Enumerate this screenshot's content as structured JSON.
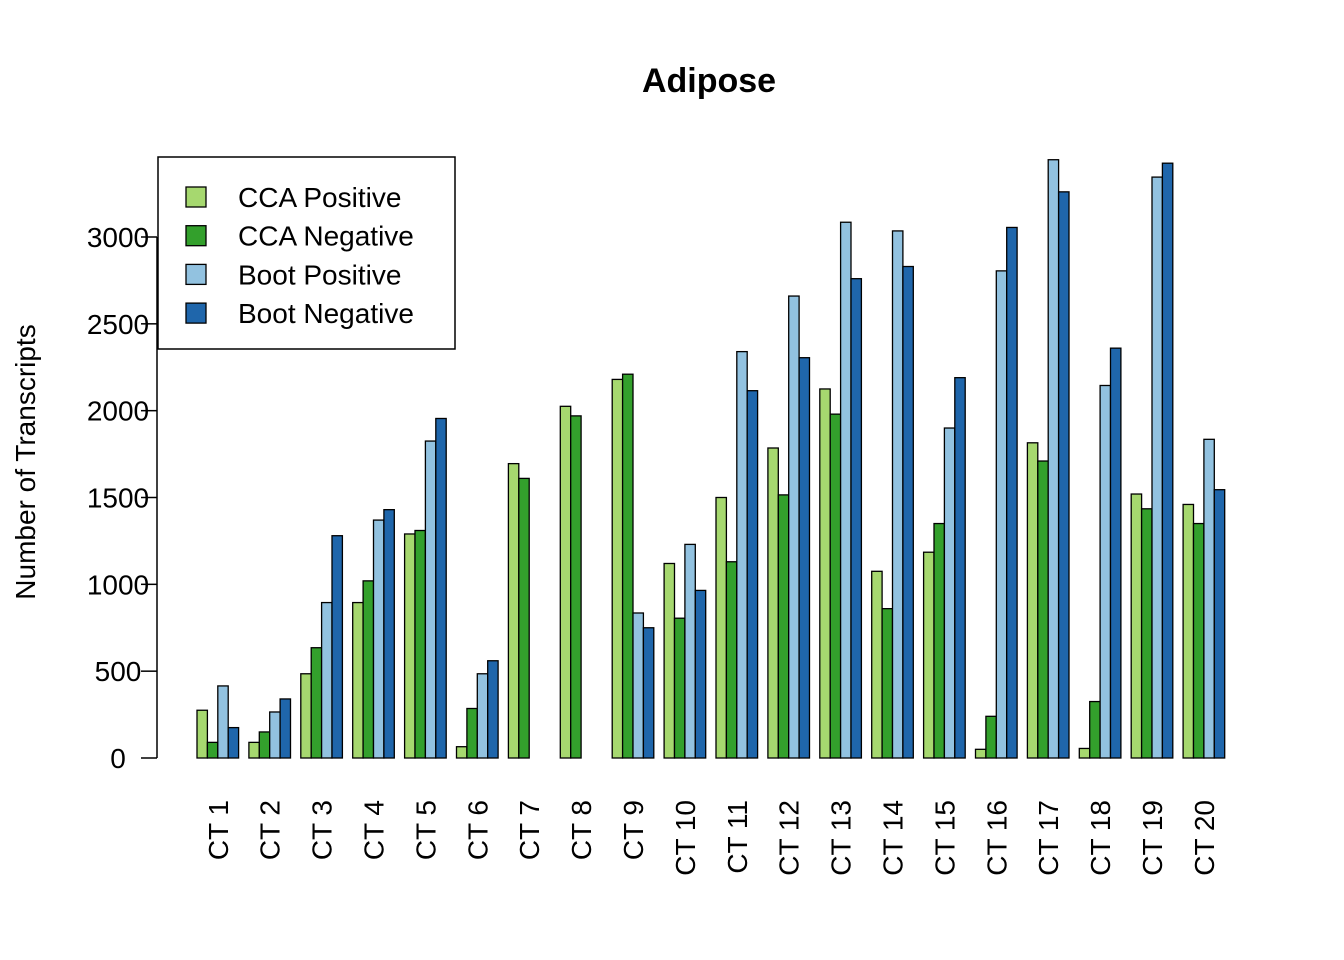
{
  "chart_data": {
    "type": "bar",
    "title": "Adipose",
    "xlabel": "",
    "ylabel": "Number of Transcripts",
    "ylim": [
      0,
      3450
    ],
    "yticks": [
      0,
      500,
      1000,
      1500,
      2000,
      2500,
      3000
    ],
    "categories": [
      "CT 1",
      "CT 2",
      "CT 3",
      "CT 4",
      "CT 5",
      "CT 6",
      "CT 7",
      "CT 8",
      "CT 9",
      "CT 10",
      "CT 11",
      "CT 12",
      "CT 13",
      "CT 14",
      "CT 15",
      "CT 16",
      "CT 17",
      "CT 18",
      "CT 19",
      "CT 20"
    ],
    "series": [
      {
        "name": "CCA Positive",
        "color": "#a6d86f",
        "values": [
          275,
          90,
          485,
          895,
          1290,
          65,
          1695,
          2025,
          2180,
          1120,
          1500,
          1785,
          2125,
          1075,
          1185,
          50,
          1815,
          55,
          1520,
          1460
        ]
      },
      {
        "name": "CCA Negative",
        "color": "#33a02c",
        "values": [
          90,
          150,
          635,
          1020,
          1310,
          285,
          1610,
          1970,
          2210,
          805,
          1130,
          1515,
          1980,
          860,
          1350,
          240,
          1710,
          325,
          1435,
          1350
        ]
      },
      {
        "name": "Boot Positive",
        "color": "#92c2e0",
        "values": [
          415,
          265,
          895,
          1370,
          1825,
          485,
          0,
          0,
          835,
          1230,
          2340,
          2660,
          3085,
          3035,
          1900,
          2805,
          3445,
          2145,
          3345,
          1835
        ]
      },
      {
        "name": "Boot Negative",
        "color": "#1f66ab",
        "values": [
          175,
          340,
          1280,
          1430,
          1955,
          560,
          0,
          0,
          750,
          965,
          2115,
          2305,
          2760,
          2830,
          2190,
          3055,
          3260,
          2360,
          3425,
          1545
        ]
      }
    ],
    "legend_position": "top-left",
    "grid": false
  }
}
